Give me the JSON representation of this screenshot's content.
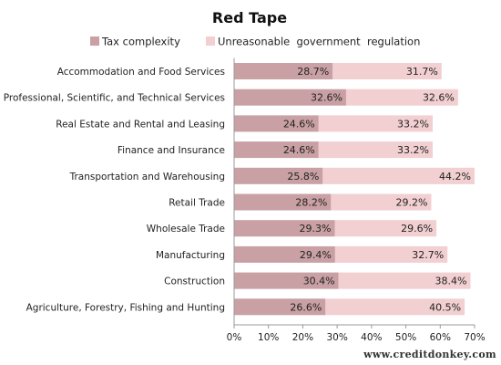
{
  "chart_data": {
    "type": "bar",
    "orientation": "horizontal",
    "stacked": true,
    "title": "Red Tape",
    "categories": [
      "Accommodation and Food Services",
      "Professional, Scientific, and Technical Services",
      "Real Estate and Rental and Leasing",
      "Finance and Insurance",
      "Transportation and Warehousing",
      "Retail Trade",
      "Wholesale Trade",
      "Manufacturing",
      "Construction",
      "Agriculture, Forestry, Fishing and Hunting"
    ],
    "series": [
      {
        "name": "Tax complexity",
        "color": "#c9a0a3",
        "values": [
          28.7,
          32.6,
          24.6,
          24.6,
          25.8,
          28.2,
          29.3,
          29.4,
          30.4,
          26.6
        ],
        "labels": [
          "28.7%",
          "32.6%",
          "24.6%",
          "24.6%",
          "25.8%",
          "28.2%",
          "29.3%",
          "29.4%",
          "30.4%",
          "26.6%"
        ]
      },
      {
        "name": "Unreasonable  government  regulation",
        "color": "#f2cfd1",
        "values": [
          31.7,
          32.6,
          33.2,
          33.2,
          44.2,
          29.2,
          29.6,
          32.7,
          38.4,
          40.5
        ],
        "labels": [
          "31.7%",
          "32.6%",
          "33.2%",
          "33.2%",
          "44.2%",
          "29.2%",
          "29.6%",
          "32.7%",
          "38.4%",
          "40.5%"
        ]
      }
    ],
    "xlim": [
      0,
      70
    ],
    "xticks": [
      0,
      10,
      20,
      30,
      40,
      50,
      60,
      70
    ],
    "xtick_labels": [
      "0%",
      "10%",
      "20%",
      "30%",
      "40%",
      "50%",
      "60%",
      "70%"
    ],
    "xlabel": "",
    "ylabel": "",
    "grid": false,
    "legend_position": "top"
  },
  "source": "www.creditdonkey.com"
}
